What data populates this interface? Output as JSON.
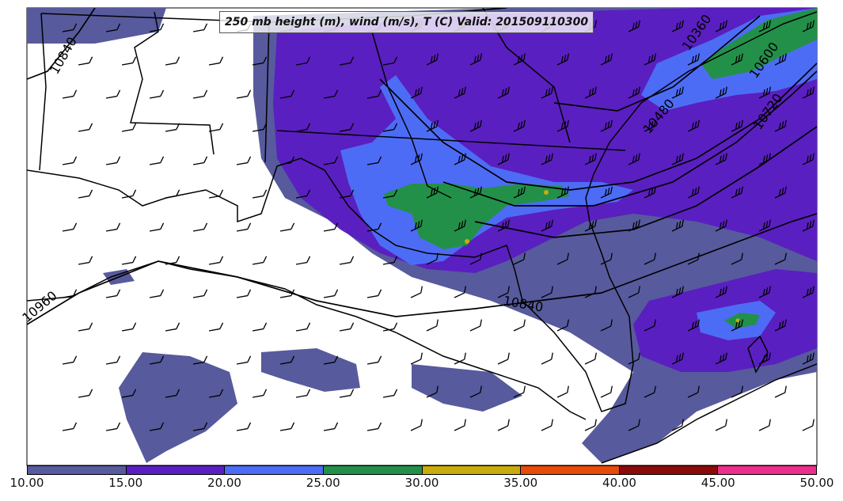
{
  "title": "250 mb height (m), wind (m/s), T (C) Valid: 201509110300",
  "colorbar": {
    "labels": [
      "10.00",
      "15.00",
      "20.00",
      "25.00",
      "30.00",
      "35.00",
      "40.00",
      "45.00",
      "50.00"
    ],
    "colors": [
      "#575a9c",
      "#5a1fc0",
      "#4d6cf5",
      "#239049",
      "#c8ab0c",
      "#e84a0a",
      "#8b0a0a",
      "#ee2e8c"
    ]
  },
  "contour_labels": [
    "10840",
    "10360",
    "10600",
    "10480",
    "10720",
    "10840",
    "10960"
  ],
  "shading_colors": {
    "ws_10_15": "#575a9c",
    "ws_15_20": "#5a1fc0",
    "ws_20_25": "#4d6cf5",
    "ws_25_30": "#239049",
    "ws_30_35": "#c8ab0c"
  },
  "icons": [
    "wind-barb-icon"
  ]
}
